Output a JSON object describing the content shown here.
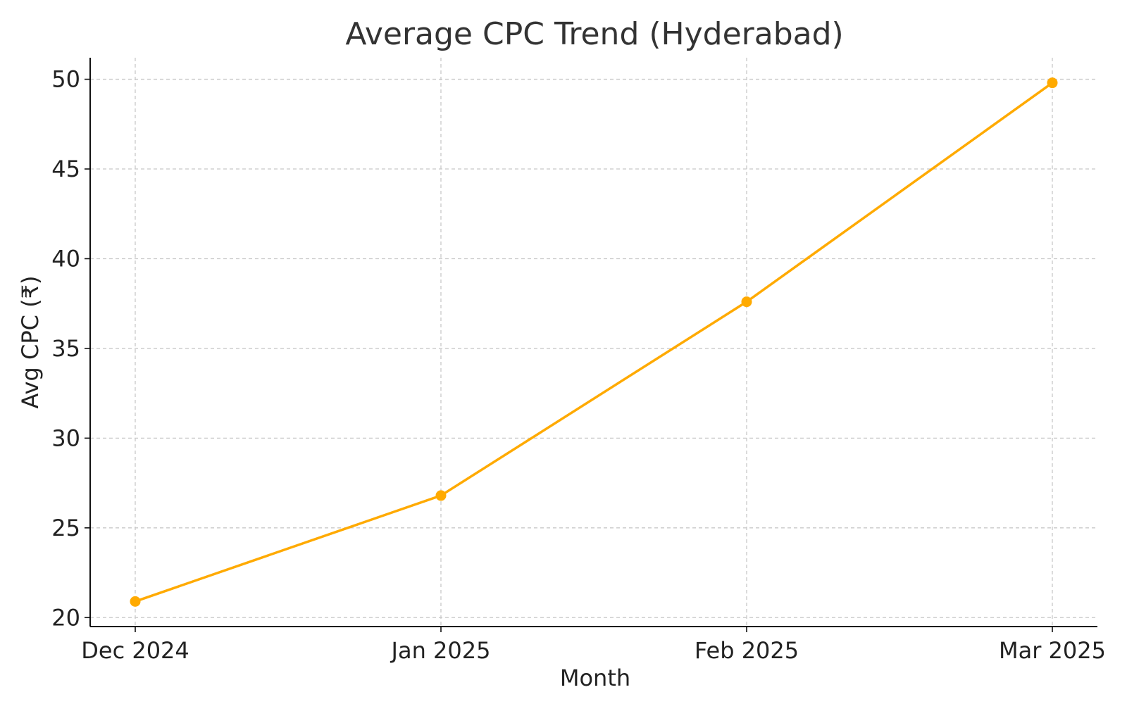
{
  "chart_data": {
    "type": "line",
    "title": "Average CPC Trend (Hyderabad)",
    "xlabel": "Month",
    "ylabel": "Avg CPC (₹)",
    "categories": [
      "Dec 2024",
      "Jan 2025",
      "Feb 2025",
      "Mar 2025"
    ],
    "series": [
      {
        "values": [
          20.9,
          26.8,
          37.6,
          49.8
        ]
      }
    ],
    "ylim": [
      19.5,
      51.2
    ],
    "yticks": [
      20,
      25,
      30,
      35,
      40,
      45,
      50
    ],
    "grid": true,
    "line_color": "#FFAA00"
  }
}
